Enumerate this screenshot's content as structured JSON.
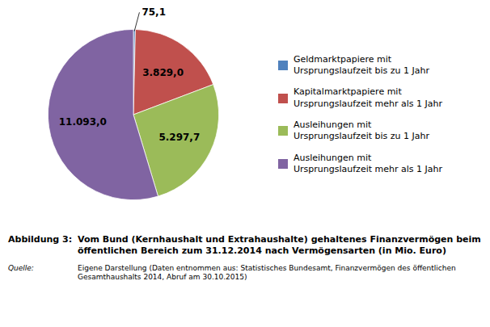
{
  "chart_data": {
    "type": "pie",
    "categories": [
      "Geldmarktpapiere mit\nUrsprungslaufzeit bis zu 1 Jahr",
      "Kapitalmarktpapiere mit\nUrsprungslaufzeit mehr als 1 Jahr",
      "Ausleihungen mit\nUrsprungslaufzeit bis zu 1 Jahr",
      "Ausleihungen mit\nUrsprungslaufzeit mehr als 1 Jahr"
    ],
    "values": [
      75.1,
      3829.0,
      5297.7,
      11093.0
    ],
    "value_labels": [
      "75,1",
      "3.829,0",
      "5.297,7",
      "11.093,0"
    ],
    "colors": [
      "#4F81BD",
      "#C0504D",
      "#9BBB59",
      "#8064A2"
    ],
    "data_labels": true,
    "legend": "right",
    "caption_label": "Abbildung 3:",
    "caption": "Vom Bund (Kernhaushalt und Extrahaushalte) gehaltenes Finanzvermögen beim\nöffentlichen Bereich zum 31.12.2014 nach Vermögensarten (in Mio. Euro)",
    "source_label": "Quelle:",
    "source": "Eigene Darstellung (Daten entnommen aus: Statistisches Bundesamt, Finanzvermögen des öffentlichen\nGesamthaushalts 2014, Abruf am 30.10.2015)"
  }
}
